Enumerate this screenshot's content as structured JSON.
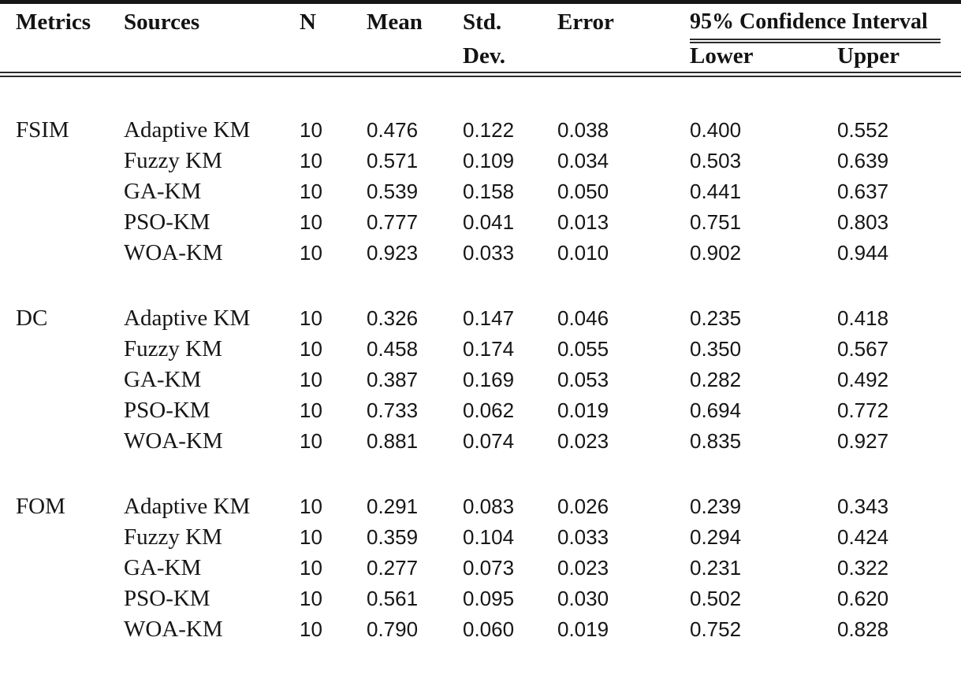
{
  "table": {
    "headers": {
      "metrics": "Metrics",
      "sources": "Sources",
      "n": "N",
      "mean": "Mean",
      "std_line1": "Std.",
      "std_line2": "Dev.",
      "error": "Error",
      "ci_group": "95% Confidence Interval",
      "lower": "Lower",
      "upper": "Upper"
    },
    "colors": {
      "text": "#161616",
      "rule": "#2b2b2b",
      "background": "#ffffff"
    },
    "groups": [
      {
        "metric": "FSIM",
        "rows": [
          {
            "source": "Adaptive KM",
            "n": "10",
            "mean": "0.476",
            "std_dev": "0.122",
            "error": "0.038",
            "lower": "0.400",
            "upper": "0.552"
          },
          {
            "source": "Fuzzy KM",
            "n": "10",
            "mean": "0.571",
            "std_dev": "0.109",
            "error": "0.034",
            "lower": "0.503",
            "upper": "0.639"
          },
          {
            "source": "GA-KM",
            "n": "10",
            "mean": "0.539",
            "std_dev": "0.158",
            "error": "0.050",
            "lower": "0.441",
            "upper": "0.637"
          },
          {
            "source": "PSO-KM",
            "n": "10",
            "mean": "0.777",
            "std_dev": "0.041",
            "error": "0.013",
            "lower": "0.751",
            "upper": "0.803"
          },
          {
            "source": "WOA-KM",
            "n": "10",
            "mean": "0.923",
            "std_dev": "0.033",
            "error": "0.010",
            "lower": "0.902",
            "upper": "0.944"
          }
        ]
      },
      {
        "metric": "DC",
        "rows": [
          {
            "source": "Adaptive KM",
            "n": "10",
            "mean": "0.326",
            "std_dev": "0.147",
            "error": "0.046",
            "lower": "0.235",
            "upper": "0.418"
          },
          {
            "source": "Fuzzy KM",
            "n": "10",
            "mean": "0.458",
            "std_dev": "0.174",
            "error": "0.055",
            "lower": "0.350",
            "upper": "0.567"
          },
          {
            "source": "GA-KM",
            "n": "10",
            "mean": "0.387",
            "std_dev": "0.169",
            "error": "0.053",
            "lower": "0.282",
            "upper": "0.492"
          },
          {
            "source": "PSO-KM",
            "n": "10",
            "mean": "0.733",
            "std_dev": "0.062",
            "error": "0.019",
            "lower": "0.694",
            "upper": "0.772"
          },
          {
            "source": "WOA-KM",
            "n": "10",
            "mean": "0.881",
            "std_dev": "0.074",
            "error": "0.023",
            "lower": "0.835",
            "upper": "0.927"
          }
        ]
      },
      {
        "metric": "FOM",
        "rows": [
          {
            "source": "Adaptive KM",
            "n": "10",
            "mean": "0.291",
            "std_dev": "0.083",
            "error": "0.026",
            "lower": "0.239",
            "upper": "0.343"
          },
          {
            "source": "Fuzzy KM",
            "n": "10",
            "mean": "0.359",
            "std_dev": "0.104",
            "error": "0.033",
            "lower": "0.294",
            "upper": "0.424"
          },
          {
            "source": "GA-KM",
            "n": "10",
            "mean": "0.277",
            "std_dev": "0.073",
            "error": "0.023",
            "lower": "0.231",
            "upper": "0.322"
          },
          {
            "source": "PSO-KM",
            "n": "10",
            "mean": "0.561",
            "std_dev": "0.095",
            "error": "0.030",
            "lower": "0.502",
            "upper": "0.620"
          },
          {
            "source": "WOA-KM",
            "n": "10",
            "mean": "0.790",
            "std_dev": "0.060",
            "error": "0.019",
            "lower": "0.752",
            "upper": "0.828"
          }
        ]
      }
    ]
  },
  "chart_data": {
    "type": "table",
    "columns": [
      "Metrics",
      "Sources",
      "N",
      "Mean",
      "Std. Dev.",
      "Error",
      "95% CI Lower",
      "95% CI Upper"
    ],
    "rows": [
      [
        "FSIM",
        "Adaptive KM",
        10,
        0.476,
        0.122,
        0.038,
        0.4,
        0.552
      ],
      [
        "FSIM",
        "Fuzzy KM",
        10,
        0.571,
        0.109,
        0.034,
        0.503,
        0.639
      ],
      [
        "FSIM",
        "GA-KM",
        10,
        0.539,
        0.158,
        0.05,
        0.441,
        0.637
      ],
      [
        "FSIM",
        "PSO-KM",
        10,
        0.777,
        0.041,
        0.013,
        0.751,
        0.803
      ],
      [
        "FSIM",
        "WOA-KM",
        10,
        0.923,
        0.033,
        0.01,
        0.902,
        0.944
      ],
      [
        "DC",
        "Adaptive KM",
        10,
        0.326,
        0.147,
        0.046,
        0.235,
        0.418
      ],
      [
        "DC",
        "Fuzzy KM",
        10,
        0.458,
        0.174,
        0.055,
        0.35,
        0.567
      ],
      [
        "DC",
        "GA-KM",
        10,
        0.387,
        0.169,
        0.053,
        0.282,
        0.492
      ],
      [
        "DC",
        "PSO-KM",
        10,
        0.733,
        0.062,
        0.019,
        0.694,
        0.772
      ],
      [
        "DC",
        "WOA-KM",
        10,
        0.881,
        0.074,
        0.023,
        0.835,
        0.927
      ],
      [
        "FOM",
        "Adaptive KM",
        10,
        0.291,
        0.083,
        0.026,
        0.239,
        0.343
      ],
      [
        "FOM",
        "Fuzzy KM",
        10,
        0.359,
        0.104,
        0.033,
        0.294,
        0.424
      ],
      [
        "FOM",
        "GA-KM",
        10,
        0.277,
        0.073,
        0.023,
        0.231,
        0.322
      ],
      [
        "FOM",
        "PSO-KM",
        10,
        0.561,
        0.095,
        0.03,
        0.502,
        0.62
      ],
      [
        "FOM",
        "WOA-KM",
        10,
        0.79,
        0.06,
        0.019,
        0.752,
        0.828
      ]
    ]
  }
}
